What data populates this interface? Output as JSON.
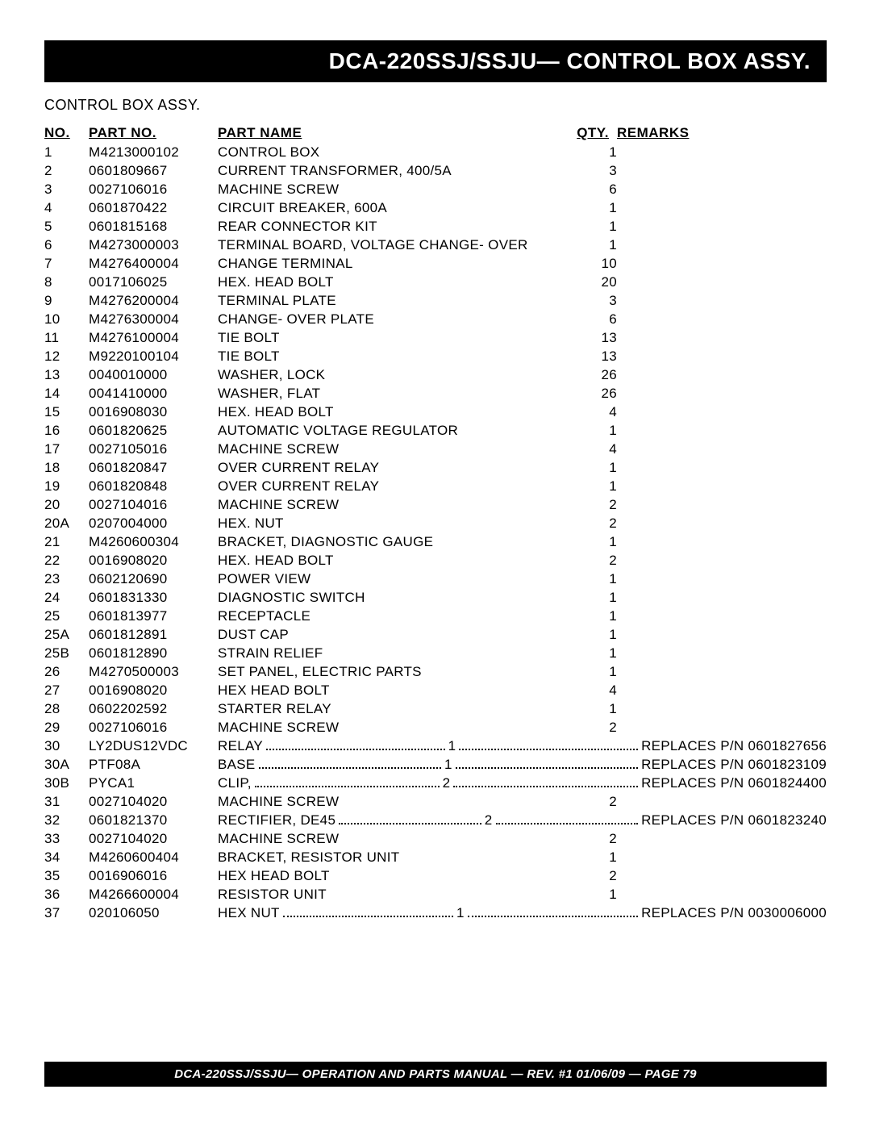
{
  "header": {
    "title": "DCA-220SSJ/SSJU— CONTROL BOX  ASSY."
  },
  "subtitle": "CONTROL BOX ASSY.",
  "columns": {
    "no": "NO.",
    "part": "PART NO.",
    "name": "PART NAME",
    "qty": "QTY.",
    "remarks": "REMARKS"
  },
  "rows": [
    {
      "no": "1",
      "part": "M4213000102",
      "name": "CONTROL BOX",
      "qty": "1",
      "remarks": "",
      "dotted": false
    },
    {
      "no": "2",
      "part": "0601809667",
      "name": "CURRENT TRANSFORMER, 400/5A",
      "qty": "3",
      "remarks": "",
      "dotted": false
    },
    {
      "no": "3",
      "part": "0027106016",
      "name": "MACHINE SCREW",
      "qty": "6",
      "remarks": "",
      "dotted": false
    },
    {
      "no": "4",
      "part": "0601870422",
      "name": "CIRCUIT BREAKER, 600A",
      "qty": "1",
      "remarks": "",
      "dotted": false
    },
    {
      "no": "5",
      "part": "0601815168",
      "name": "REAR CONNECTOR KIT",
      "qty": "1",
      "remarks": "",
      "dotted": false
    },
    {
      "no": "6",
      "part": "M4273000003",
      "name": "TERMINAL BOARD, VOLTAGE CHANGE- OVER",
      "qty": "1",
      "remarks": "",
      "dotted": false
    },
    {
      "no": "7",
      "part": "M4276400004",
      "name": "CHANGE TERMINAL",
      "qty": "10",
      "remarks": "",
      "dotted": false
    },
    {
      "no": "8",
      "part": "0017106025",
      "name": "HEX. HEAD BOLT",
      "qty": "20",
      "remarks": "",
      "dotted": false
    },
    {
      "no": "9",
      "part": "M4276200004",
      "name": "TERMINAL PLATE",
      "qty": "3",
      "remarks": "",
      "dotted": false
    },
    {
      "no": "10",
      "part": "M4276300004",
      "name": "CHANGE- OVER PLATE",
      "qty": "6",
      "remarks": "",
      "dotted": false
    },
    {
      "no": "11",
      "part": "M4276100004",
      "name": "TIE BOLT",
      "qty": "13",
      "remarks": "",
      "dotted": false
    },
    {
      "no": "12",
      "part": "M9220100104",
      "name": "TIE BOLT",
      "qty": "13",
      "remarks": "",
      "dotted": false
    },
    {
      "no": "13",
      "part": "0040010000",
      "name": "WASHER, LOCK",
      "qty": "26",
      "remarks": "",
      "dotted": false
    },
    {
      "no": "14",
      "part": "0041410000",
      "name": "WASHER, FLAT",
      "qty": "26",
      "remarks": "",
      "dotted": false
    },
    {
      "no": "15",
      "part": "0016908030",
      "name": "HEX. HEAD BOLT",
      "qty": "4",
      "remarks": "",
      "dotted": false
    },
    {
      "no": "16",
      "part": "0601820625",
      "name": "AUTOMATIC VOLTAGE REGULATOR",
      "qty": "1",
      "remarks": "",
      "dotted": false
    },
    {
      "no": "17",
      "part": "0027105016",
      "name": "MACHINE SCREW",
      "qty": "4",
      "remarks": "",
      "dotted": false
    },
    {
      "no": "18",
      "part": "0601820847",
      "name": "OVER CURRENT RELAY",
      "qty": "1",
      "remarks": "",
      "dotted": false
    },
    {
      "no": "19",
      "part": "0601820848",
      "name": "OVER CURRENT RELAY",
      "qty": "1",
      "remarks": "",
      "dotted": false
    },
    {
      "no": "20",
      "part": "0027104016",
      "name": "MACHINE SCREW",
      "qty": "2",
      "remarks": "",
      "dotted": false
    },
    {
      "no": "20A",
      "part": "0207004000",
      "name": "HEX. NUT",
      "qty": "2",
      "remarks": "",
      "dotted": false
    },
    {
      "no": "21",
      "part": "M4260600304",
      "name": "BRACKET, DIAGNOSTIC GAUGE",
      "qty": "1",
      "remarks": "",
      "dotted": false
    },
    {
      "no": "22",
      "part": "0016908020",
      "name": "HEX. HEAD BOLT",
      "qty": "2",
      "remarks": "",
      "dotted": false
    },
    {
      "no": "23",
      "part": "0602120690",
      "name": "POWER VIEW",
      "qty": "1",
      "remarks": "",
      "dotted": false
    },
    {
      "no": "24",
      "part": "0601831330",
      "name": "DIAGNOSTIC SWITCH",
      "qty": "1",
      "remarks": "",
      "dotted": false
    },
    {
      "no": "25",
      "part": "0601813977",
      "name": "RECEPTACLE",
      "qty": "1",
      "remarks": "",
      "dotted": false
    },
    {
      "no": "25A",
      "part": "0601812891",
      "name": "DUST CAP",
      "qty": "1",
      "remarks": "",
      "dotted": false
    },
    {
      "no": "25B",
      "part": "0601812890",
      "name": "STRAIN RELIEF",
      "qty": "1",
      "remarks": "",
      "dotted": false
    },
    {
      "no": "26",
      "part": "M4270500003",
      "name": "SET PANEL, ELECTRIC PARTS",
      "qty": "1",
      "remarks": "",
      "dotted": false
    },
    {
      "no": "27",
      "part": "0016908020",
      "name": "HEX HEAD BOLT",
      "qty": "4",
      "remarks": "",
      "dotted": false
    },
    {
      "no": "28",
      "part": "0602202592",
      "name": "STARTER RELAY",
      "qty": "1",
      "remarks": "",
      "dotted": false
    },
    {
      "no": "29",
      "part": "0027106016",
      "name": "MACHINE SCREW",
      "qty": "2",
      "remarks": "",
      "dotted": false
    },
    {
      "no": "30",
      "part": "LY2DUS12VDC",
      "name": "RELAY",
      "qty": "1",
      "remarks": "REPLACES P/N 0601827656",
      "dotted": true
    },
    {
      "no": "30A",
      "part": "PTF08A",
      "name": "BASE",
      "qty": "1",
      "remarks": "REPLACES P/N 0601823109",
      "dotted": true
    },
    {
      "no": "30B",
      "part": "PYCA1",
      "name": "CLIP,",
      "qty": "2",
      "remarks": "REPLACES P/N 0601824400",
      "dotted": true
    },
    {
      "no": "31",
      "part": "0027104020",
      "name": "MACHINE SCREW",
      "qty": "2",
      "remarks": "",
      "dotted": false
    },
    {
      "no": "32",
      "part": "0601821370",
      "name": "RECTIFIER, DE45",
      "qty": "2",
      "remarks": "REPLACES P/N 0601823240",
      "dotted": true
    },
    {
      "no": "33",
      "part": "0027104020",
      "name": "MACHINE SCREW",
      "qty": "2",
      "remarks": "",
      "dotted": false
    },
    {
      "no": "34",
      "part": "M4260600404",
      "name": "BRACKET, RESISTOR UNIT",
      "qty": "1",
      "remarks": "",
      "dotted": false
    },
    {
      "no": "35",
      "part": "0016906016",
      "name": "HEX HEAD BOLT",
      "qty": "2",
      "remarks": "",
      "dotted": false
    },
    {
      "no": "36",
      "part": "M4266600004",
      "name": "RESISTOR UNIT",
      "qty": "1",
      "remarks": "",
      "dotted": false
    },
    {
      "no": "37",
      "part": "020106050",
      "name": "HEX NUT",
      "qty": "1",
      "remarks": "REPLACES P/N 0030006000",
      "dotted": true
    }
  ],
  "footer": "DCA-220SSJ/SSJU— OPERATION AND PARTS MANUAL — REV. #1  01/06/09 — PAGE 79"
}
